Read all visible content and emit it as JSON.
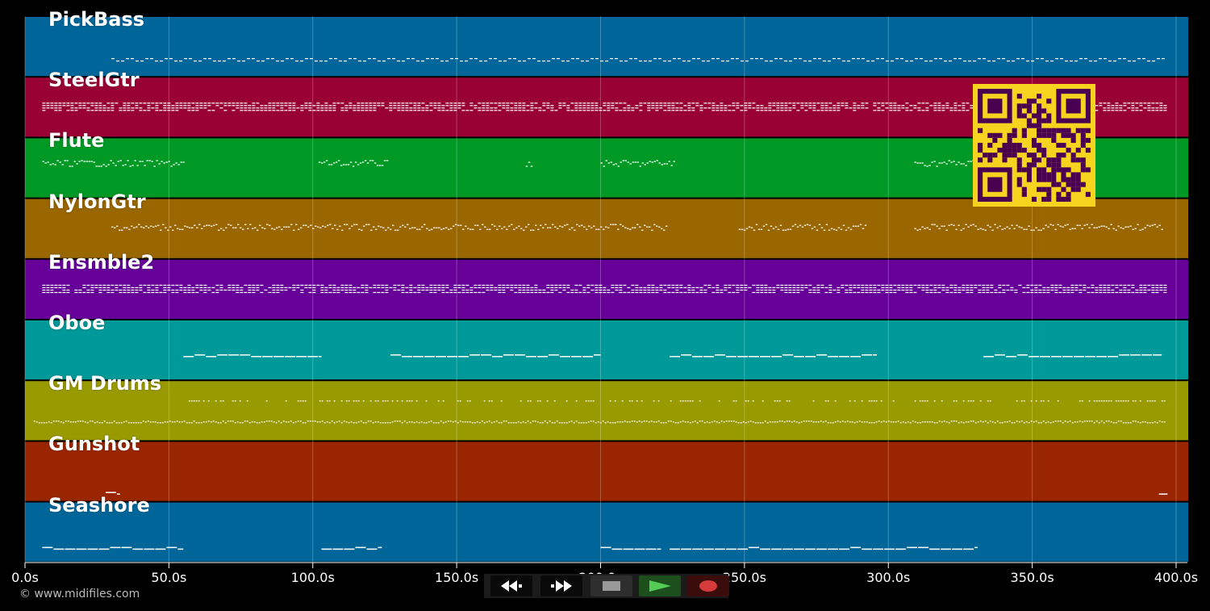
{
  "tracks": [
    {
      "name": "PickBass",
      "color": "#006699"
    },
    {
      "name": "SteelGtr",
      "color": "#990033"
    },
    {
      "name": "Flute",
      "color": "#009926"
    },
    {
      "name": "NylonGtr",
      "color": "#996600"
    },
    {
      "name": "Ensmble2",
      "color": "#660099"
    },
    {
      "name": "Oboe",
      "color": "#009999"
    },
    {
      "name": "GM Drums",
      "color": "#999900"
    },
    {
      "name": "Gunshot",
      "color": "#992600"
    },
    {
      "name": "Seashore",
      "color": "#006699"
    }
  ],
  "timeline": {
    "unit": "s",
    "max_seconds": 400,
    "ticks": [
      "0.0s",
      "50.0s",
      "100.0s",
      "150.0s",
      "200.0s",
      "250.0s",
      "300.0s",
      "350.0s",
      "400.0s"
    ],
    "tick_values": [
      0,
      50,
      100,
      150,
      200,
      250,
      300,
      350,
      400
    ]
  },
  "note_segments": [
    {
      "track": 0,
      "spans": [
        [
          30,
          395
        ]
      ],
      "style": "wave"
    },
    {
      "track": 1,
      "spans": [
        [
          6,
          396
        ]
      ],
      "style": "dense"
    },
    {
      "track": 2,
      "spans": [
        [
          6,
          55
        ],
        [
          102,
          126
        ],
        [
          174,
          176
        ],
        [
          200,
          226
        ],
        [
          309,
          345
        ]
      ],
      "style": "scatter"
    },
    {
      "track": 3,
      "spans": [
        [
          30,
          223
        ],
        [
          248,
          292
        ],
        [
          309,
          395
        ]
      ],
      "style": "scatter"
    },
    {
      "track": 4,
      "spans": [
        [
          6,
          396
        ]
      ],
      "style": "dense"
    },
    {
      "track": 5,
      "spans": [
        [
          55,
          103
        ],
        [
          127,
          200
        ],
        [
          224,
          296
        ],
        [
          333,
          395
        ]
      ],
      "style": "line"
    },
    {
      "track": 6,
      "spans": [
        [
          3,
          396
        ]
      ],
      "style": "drums"
    },
    {
      "track": 7,
      "spans": [
        [
          28,
          33
        ],
        [
          394,
          397
        ]
      ],
      "style": "line"
    },
    {
      "track": 8,
      "spans": [
        [
          6,
          55
        ],
        [
          103,
          124
        ],
        [
          200,
          221
        ],
        [
          224,
          331
        ]
      ],
      "style": "line"
    }
  ],
  "copyright": "© www.midifiles.com",
  "transport": {
    "buttons": [
      {
        "id": "rewind",
        "icon": "rewind-icon"
      },
      {
        "id": "fast-forward",
        "icon": "fast-forward-icon"
      },
      {
        "id": "stop",
        "icon": "stop-icon"
      },
      {
        "id": "play",
        "icon": "play-icon"
      },
      {
        "id": "record",
        "icon": "record-icon"
      }
    ]
  },
  "qr_colors": {
    "background": "#f5d31e",
    "module": "#4a0050"
  }
}
